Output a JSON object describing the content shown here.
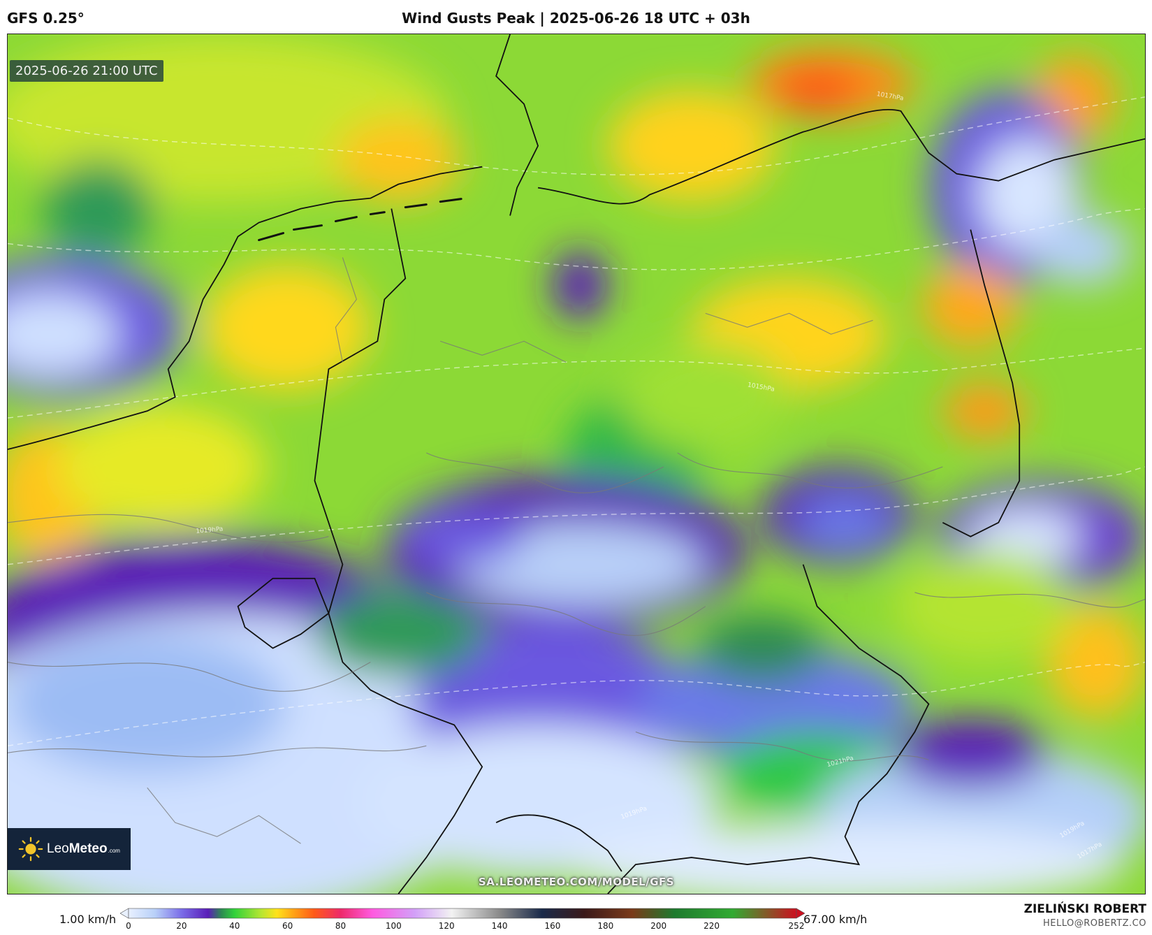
{
  "header": {
    "model": "GFS 0.25°",
    "title": "Wind Gusts Peak | 2025-06-26 18 UTC + 03h"
  },
  "map": {
    "valid_time": "2025-06-26 21:00 UTC",
    "logo": {
      "brand_light": "Leo",
      "brand_bold": "Meteo",
      "brand_suffix": ".com"
    },
    "watermark": "SA.LEOMETEO.COM/MODEL/GFS",
    "isobar_labels": [
      "1017hPa",
      "1015hPa",
      "1019hPa",
      "1021hPa",
      "1019hPa",
      "1019hPa",
      "1017hPa"
    ]
  },
  "legend": {
    "min_label": "1.00 km/h",
    "max_label": "67.00 km/h",
    "ticks": [
      "0",
      "20",
      "40",
      "60",
      "80",
      "100",
      "120",
      "140",
      "160",
      "180",
      "200",
      "220",
      "252"
    ],
    "tick_values": [
      0,
      20,
      40,
      60,
      80,
      100,
      120,
      140,
      160,
      180,
      200,
      220,
      252
    ],
    "scale_max": 252,
    "colors": [
      {
        "value": 0,
        "color": "#e8f0ff"
      },
      {
        "value": 10,
        "color": "#b8d0f8"
      },
      {
        "value": 20,
        "color": "#7a6ce8"
      },
      {
        "value": 30,
        "color": "#5a1eb8"
      },
      {
        "value": 35,
        "color": "#2e8a52"
      },
      {
        "value": 40,
        "color": "#32d23a"
      },
      {
        "value": 50,
        "color": "#b6e632"
      },
      {
        "value": 56,
        "color": "#ffe21a"
      },
      {
        "value": 62,
        "color": "#ffa516"
      },
      {
        "value": 70,
        "color": "#ff5a18"
      },
      {
        "value": 80,
        "color": "#ee2a6a"
      },
      {
        "value": 92,
        "color": "#ff5ae0"
      },
      {
        "value": 108,
        "color": "#d2a0f8"
      },
      {
        "value": 122,
        "color": "#f2f2f2"
      },
      {
        "value": 140,
        "color": "#8a8a8a"
      },
      {
        "value": 156,
        "color": "#1a2a4a"
      },
      {
        "value": 172,
        "color": "#3a1a1a"
      },
      {
        "value": 190,
        "color": "#7a3a1a"
      },
      {
        "value": 206,
        "color": "#1e7a2e"
      },
      {
        "value": 228,
        "color": "#32aa32"
      },
      {
        "value": 252,
        "color": "#cc1020"
      }
    ]
  },
  "author": {
    "name": "ZIELIŃSKI ROBERT",
    "email": "HELLO@ROBERTZ.CO"
  }
}
